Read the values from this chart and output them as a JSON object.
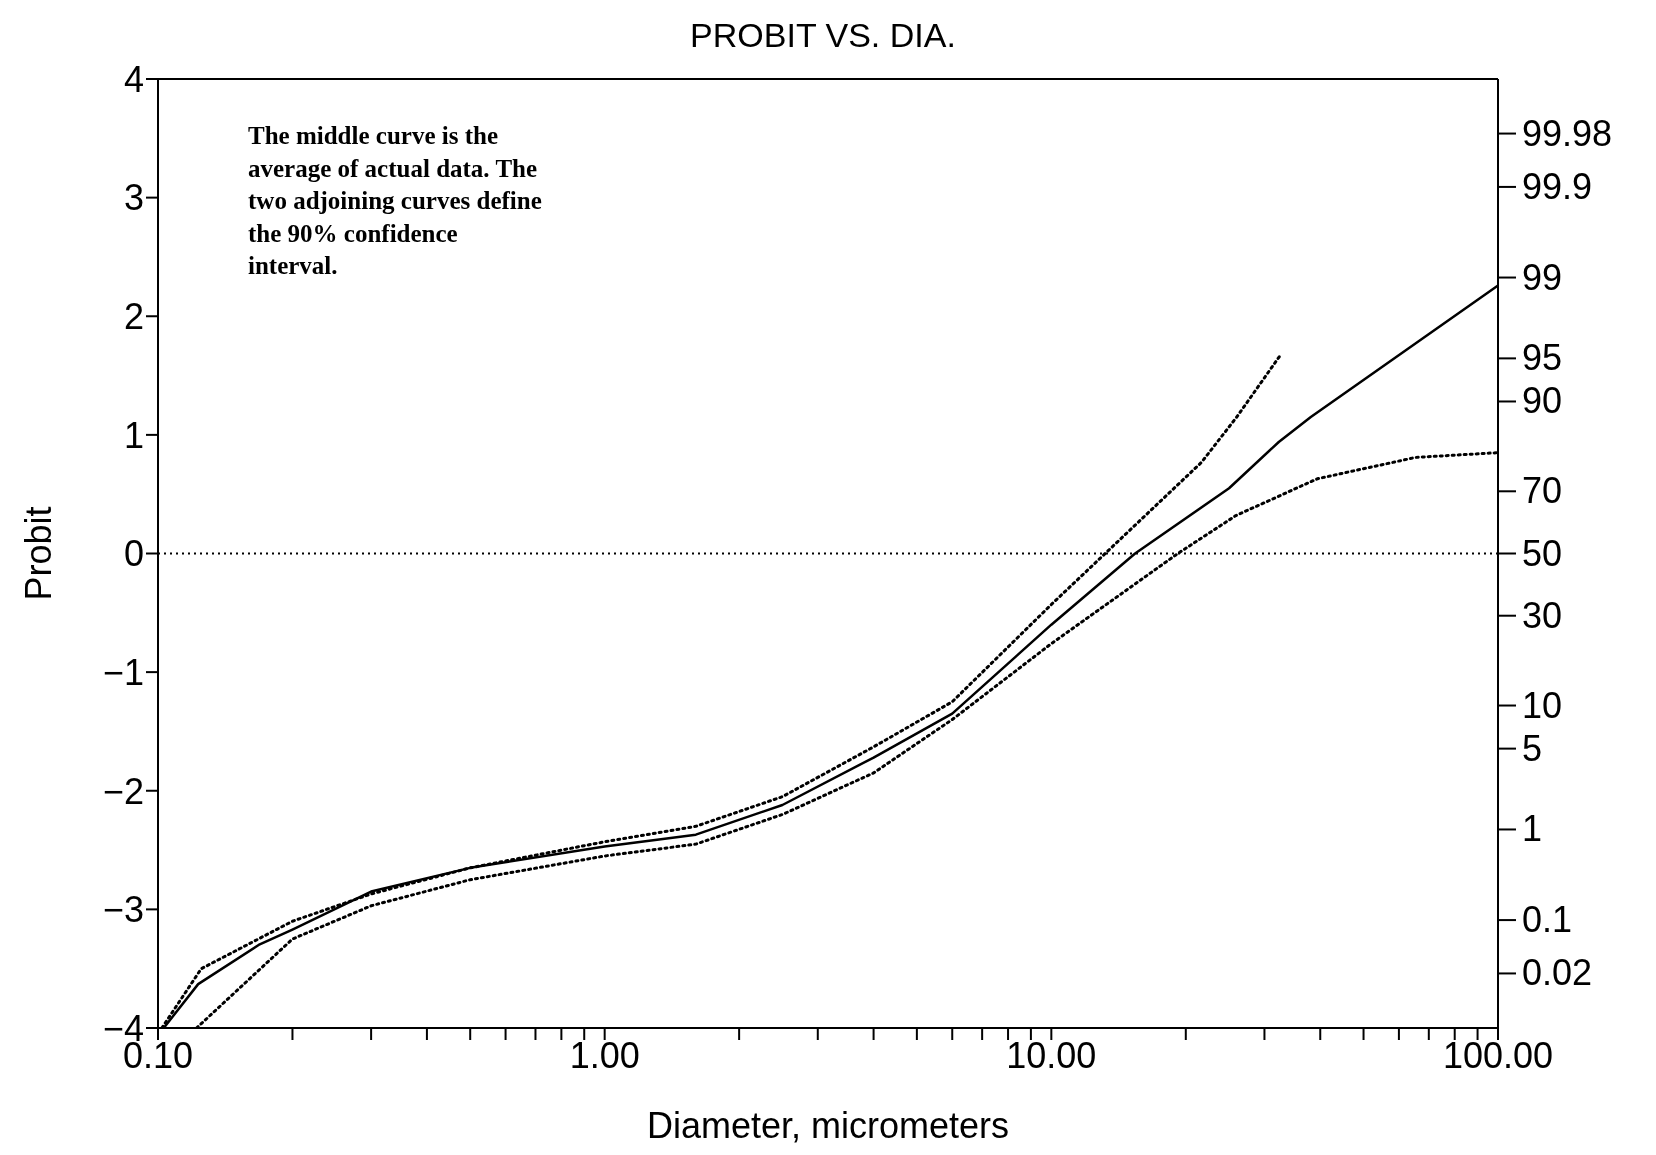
{
  "chart_data": {
    "type": "line",
    "title": "PROBIT VS. DIA.",
    "xlabel": "Diameter,  micrometers",
    "ylabel": "Probit",
    "log": "x",
    "annotations": [
      "The middle curve is the average of actual data.  The two adjoining curves define the 90% confidence interval.",
      "99.98",
      "99.9",
      "99",
      "95",
      "90",
      "70",
      "50",
      "30",
      "10",
      "5",
      "1",
      "0.1",
      "0.02"
    ],
    "xlim": [
      0.1,
      100
    ],
    "xticks": [
      {
        "value": 0.1,
        "label": "0.10"
      },
      {
        "value": 0.2,
        "label": null
      },
      {
        "value": 0.3,
        "label": null
      },
      {
        "value": 0.4,
        "label": null
      },
      {
        "value": 0.5,
        "label": null
      },
      {
        "value": 0.6,
        "label": null
      },
      {
        "value": 0.7,
        "label": null
      },
      {
        "value": 0.8,
        "label": null
      },
      {
        "value": 0.9,
        "label": null
      },
      {
        "value": 1,
        "label": "1.00"
      },
      {
        "value": 2,
        "label": null
      },
      {
        "value": 3,
        "label": null
      },
      {
        "value": 4,
        "label": null
      },
      {
        "value": 5,
        "label": null
      },
      {
        "value": 6,
        "label": null
      },
      {
        "value": 7,
        "label": null
      },
      {
        "value": 8,
        "label": null
      },
      {
        "value": 9,
        "label": null
      },
      {
        "value": 10,
        "label": "10.00"
      },
      {
        "value": 20,
        "label": null
      },
      {
        "value": 30,
        "label": null
      },
      {
        "value": 40,
        "label": null
      },
      {
        "value": 50,
        "label": null
      },
      {
        "value": 60,
        "label": null
      },
      {
        "value": 70,
        "label": null
      },
      {
        "value": 80,
        "label": null
      },
      {
        "value": 90,
        "label": null
      },
      {
        "value": 100,
        "label": "100.00"
      }
    ],
    "ylim": [
      -4,
      4
    ],
    "yticks": [
      -4,
      -3,
      -2,
      -1,
      0,
      1,
      2,
      3,
      4
    ],
    "ref_lines": [
      {
        "axis": "y",
        "value": 0,
        "label": null,
        "color": "#000000",
        "line_style": "dotted"
      }
    ],
    "series": [
      {
        "color": "#000000",
        "line_style": "solid",
        "x": [
          0.103,
          0.123,
          0.168,
          0.2,
          0.3,
          0.5,
          1,
          1.6,
          2.5,
          4,
          6,
          10,
          15.4,
          25,
          32.3,
          38.1,
          100
        ],
        "values": [
          -4,
          -3.63,
          -3.3,
          -3.17,
          -2.85,
          -2.65,
          -2.47,
          -2.37,
          -2.12,
          -1.72,
          -1.35,
          -0.6,
          0,
          0.55,
          0.94,
          1.15,
          2.26
        ]
      },
      {
        "color": "#000000",
        "line_style": "dotted",
        "x": [
          0.102,
          0.125,
          0.2,
          0.3,
          0.5,
          1,
          1.6,
          2.5,
          4,
          6,
          10,
          13.2,
          21.7,
          26,
          32.4
        ],
        "values": [
          -4,
          -3.5,
          -3.1,
          -2.87,
          -2.65,
          -2.43,
          -2.3,
          -2.05,
          -1.63,
          -1.25,
          -0.43,
          0,
          0.77,
          1.15,
          1.66
        ]
      },
      {
        "color": "#000000",
        "line_style": "dotted",
        "x": [
          0.122,
          0.2,
          0.3,
          0.5,
          1,
          1.6,
          2.5,
          4,
          6,
          10,
          19.2,
          25.9,
          39.4,
          65.4,
          100
        ],
        "values": [
          -4,
          -3.25,
          -2.97,
          -2.75,
          -2.55,
          -2.45,
          -2.2,
          -1.85,
          -1.4,
          -0.76,
          0,
          0.32,
          0.63,
          0.81,
          0.85
        ]
      }
    ]
  }
}
